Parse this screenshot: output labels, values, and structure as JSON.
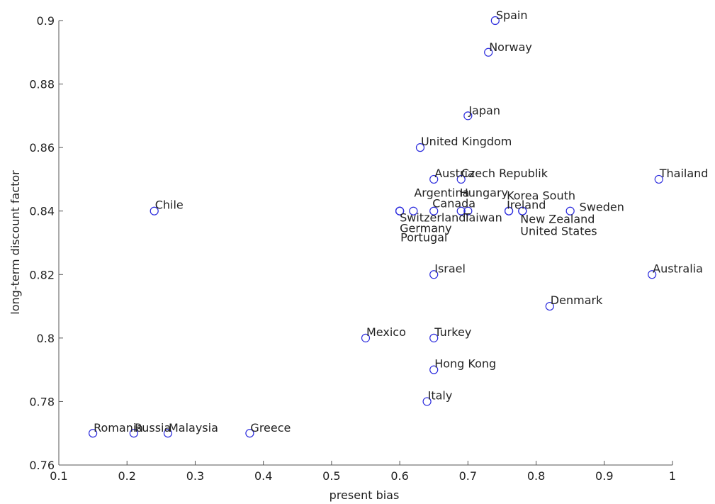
{
  "chart_data": {
    "type": "scatter",
    "xlabel": "present bias",
    "ylabel": "long-term discount factor",
    "xlim": [
      0.1,
      1
    ],
    "ylim": [
      0.76,
      0.9
    ],
    "x_ticks": [
      "0.1",
      "0.2",
      "0.3",
      "0.4",
      "0.5",
      "0.6",
      "0.7",
      "0.8",
      "0.9",
      "1"
    ],
    "y_ticks": [
      "0.76",
      "0.78",
      "0.8",
      "0.82",
      "0.84",
      "0.86",
      "0.88",
      "0.9"
    ],
    "marker_color": "#2b2bdd",
    "grid": false,
    "points": [
      {
        "label": "Spain",
        "x": 0.74,
        "y": 0.9
      },
      {
        "label": "Norway",
        "x": 0.73,
        "y": 0.89
      },
      {
        "label": "Japan",
        "x": 0.7,
        "y": 0.87
      },
      {
        "label": "United Kingdom",
        "x": 0.63,
        "y": 0.86
      },
      {
        "label": "Austria",
        "x": 0.65,
        "y": 0.85
      },
      {
        "label": "Czech Republik",
        "x": 0.69,
        "y": 0.85
      },
      {
        "label": "Thailand",
        "x": 0.98,
        "y": 0.85
      },
      {
        "label": "Chile",
        "x": 0.24,
        "y": 0.84
      },
      {
        "label": "Argentina",
        "x": 0.62,
        "y": 0.84
      },
      {
        "label": "Hungary",
        "x": 0.69,
        "y": 0.84
      },
      {
        "label": "Canada",
        "x": 0.65,
        "y": 0.84
      },
      {
        "label": "Korea South",
        "x": 0.76,
        "y": 0.84
      },
      {
        "label": "Ireland",
        "x": 0.76,
        "y": 0.84
      },
      {
        "label": "Sweden",
        "x": 0.85,
        "y": 0.84
      },
      {
        "label": "Switzerland",
        "x": 0.6,
        "y": 0.84
      },
      {
        "label": "Taiwan",
        "x": 0.7,
        "y": 0.84
      },
      {
        "label": "New Zealand",
        "x": 0.78,
        "y": 0.84
      },
      {
        "label": "Germany",
        "x": 0.6,
        "y": 0.84
      },
      {
        "label": "United States",
        "x": 0.78,
        "y": 0.84
      },
      {
        "label": "Portugal",
        "x": 0.6,
        "y": 0.84
      },
      {
        "label": "Israel",
        "x": 0.65,
        "y": 0.82
      },
      {
        "label": "Australia",
        "x": 0.97,
        "y": 0.82
      },
      {
        "label": "Denmark",
        "x": 0.82,
        "y": 0.81
      },
      {
        "label": "Mexico",
        "x": 0.55,
        "y": 0.8
      },
      {
        "label": "Turkey",
        "x": 0.65,
        "y": 0.8
      },
      {
        "label": "Hong Kong",
        "x": 0.65,
        "y": 0.79
      },
      {
        "label": "Italy",
        "x": 0.64,
        "y": 0.78
      },
      {
        "label": "Romania",
        "x": 0.15,
        "y": 0.77
      },
      {
        "label": "Russia",
        "x": 0.21,
        "y": 0.77
      },
      {
        "label": "Malaysia",
        "x": 0.26,
        "y": 0.77
      },
      {
        "label": "Greece",
        "x": 0.38,
        "y": 0.77
      }
    ]
  }
}
